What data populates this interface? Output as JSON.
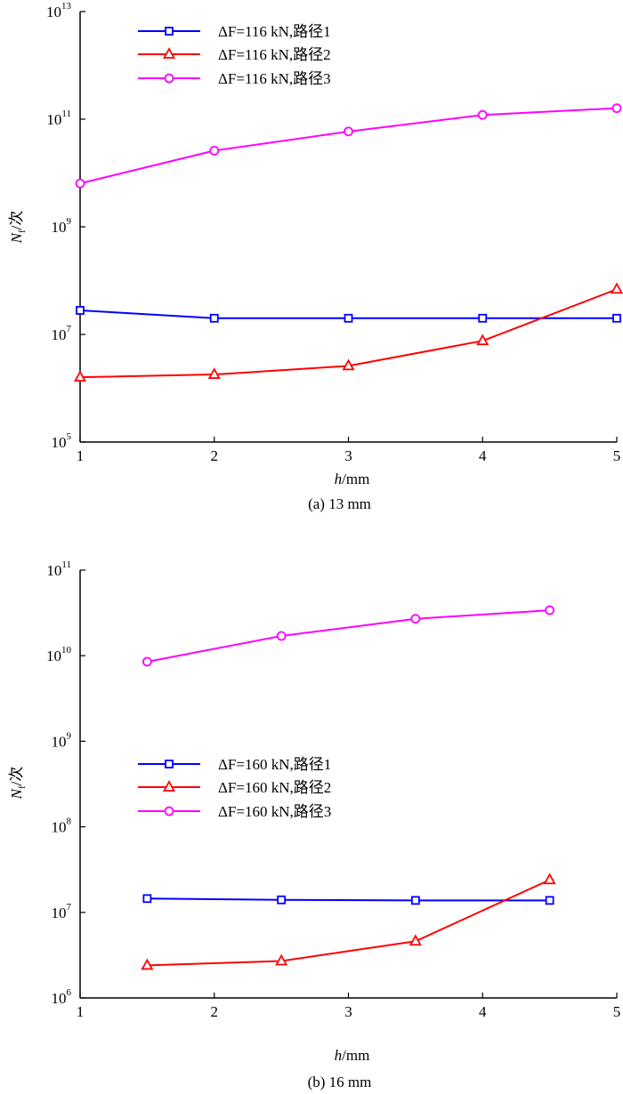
{
  "chart_data": [
    {
      "type": "line",
      "panel": "a",
      "caption": "(a)    13 mm",
      "xlabel_var": "h",
      "xlabel_unit": "/mm",
      "ylabel_var": "N",
      "ylabel_sub": "f",
      "ylabel_unit": "/次",
      "yscale": "log",
      "ylim_exp": [
        5,
        13
      ],
      "yticks_exp": [
        5,
        7,
        9,
        11,
        13
      ],
      "xlim": [
        1,
        5
      ],
      "xticks": [
        1,
        2,
        3,
        4,
        5
      ],
      "legend_position": "top-center",
      "x": [
        1,
        2,
        3,
        4,
        5
      ],
      "series": [
        {
          "name": "ΔF=116 kN,路径1",
          "color": "#0000ff",
          "marker": "square",
          "values": [
            28000000.0,
            20000000.0,
            20000000.0,
            20000000.0,
            20000000.0
          ]
        },
        {
          "name": "ΔF=116 kN,路径2",
          "color": "#ff0000",
          "marker": "triangle",
          "values": [
            1600000.0,
            1800000.0,
            2600000.0,
            7600000.0,
            69000000.0
          ]
        },
        {
          "name": "ΔF=116 kN,路径3",
          "color": "#ff00ff",
          "marker": "circle",
          "values": [
            6400000000.0,
            26000000000.0,
            59000000000.0,
            120000000000.0,
            160000000000.0
          ]
        }
      ]
    },
    {
      "type": "line",
      "panel": "b",
      "caption": "(b)    16 mm",
      "xlabel_var": "h",
      "xlabel_unit": "/mm",
      "ylabel_var": "N",
      "ylabel_sub": "f",
      "ylabel_unit": "/次",
      "yscale": "log",
      "ylim_exp": [
        6,
        11
      ],
      "yticks_exp": [
        6,
        7,
        8,
        9,
        10,
        11
      ],
      "xlim": [
        1,
        5
      ],
      "xticks": [
        1,
        2,
        3,
        4,
        5
      ],
      "legend_position": "center",
      "x": [
        1.5,
        2.5,
        3.5,
        4.5
      ],
      "series": [
        {
          "name": "ΔF=160 kN,路径1",
          "color": "#0000ff",
          "marker": "square",
          "values": [
            14500000.0,
            14000000.0,
            13800000.0,
            13800000.0
          ]
        },
        {
          "name": "ΔF=160 kN,路径2",
          "color": "#ff0000",
          "marker": "triangle",
          "values": [
            2400000.0,
            2700000.0,
            4600000.0,
            24000000.0
          ]
        },
        {
          "name": "ΔF=160 kN,路径3",
          "color": "#ff00ff",
          "marker": "circle",
          "values": [
            8500000000.0,
            17000000000.0,
            27000000000.0,
            34000000000.0
          ]
        }
      ]
    }
  ]
}
